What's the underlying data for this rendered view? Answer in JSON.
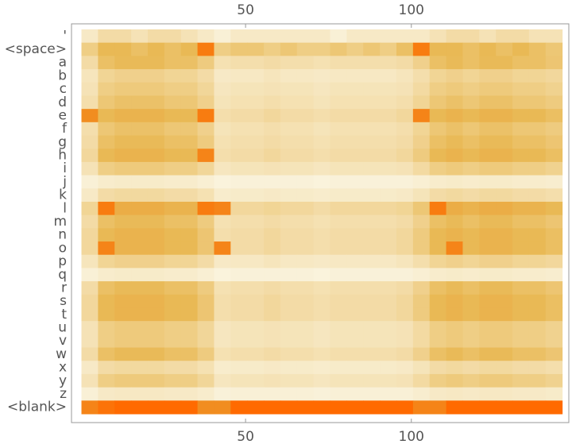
{
  "chart_data": {
    "type": "heatmap",
    "rows": [
      "'",
      "<space>",
      "a",
      "b",
      "c",
      "d",
      "e",
      "f",
      "g",
      "h",
      "i",
      "j",
      "k",
      "l",
      "m",
      "n",
      "o",
      "p",
      "q",
      "r",
      "s",
      "t",
      "u",
      "v",
      "w",
      "x",
      "y",
      "z",
      "<blank>"
    ],
    "x": [
      3,
      8,
      13,
      18,
      23,
      28,
      33,
      38,
      43,
      48,
      53,
      58,
      63,
      68,
      73,
      78,
      83,
      88,
      93,
      98,
      103,
      108,
      113,
      118,
      123,
      128,
      133,
      138,
      143
    ],
    "xlim": [
      -2.5,
      147.5
    ],
    "xticks": [
      50,
      100
    ],
    "values": [
      [
        0.1,
        0.2,
        0.2,
        0.15,
        0.2,
        0.2,
        0.15,
        0.1,
        0.05,
        0.1,
        0.1,
        0.1,
        0.1,
        0.1,
        0.1,
        0.05,
        0.1,
        0.1,
        0.1,
        0.1,
        0.1,
        0.15,
        0.2,
        0.2,
        0.15,
        0.2,
        0.2,
        0.15,
        0.15
      ],
      [
        0.3,
        0.45,
        0.45,
        0.4,
        0.45,
        0.4,
        0.45,
        0.9,
        0.3,
        0.35,
        0.35,
        0.3,
        0.35,
        0.3,
        0.3,
        0.35,
        0.3,
        0.35,
        0.3,
        0.4,
        0.9,
        0.45,
        0.45,
        0.4,
        0.45,
        0.4,
        0.45,
        0.4,
        0.35
      ],
      [
        0.2,
        0.4,
        0.44,
        0.44,
        0.44,
        0.4,
        0.4,
        0.32,
        0.16,
        0.18,
        0.18,
        0.2,
        0.18,
        0.18,
        0.16,
        0.18,
        0.18,
        0.18,
        0.18,
        0.2,
        0.28,
        0.4,
        0.44,
        0.4,
        0.44,
        0.44,
        0.4,
        0.4,
        0.36
      ],
      [
        0.13,
        0.25,
        0.28,
        0.28,
        0.28,
        0.25,
        0.25,
        0.2,
        0.1,
        0.11,
        0.11,
        0.13,
        0.11,
        0.11,
        0.1,
        0.11,
        0.11,
        0.11,
        0.11,
        0.13,
        0.18,
        0.25,
        0.28,
        0.25,
        0.28,
        0.28,
        0.25,
        0.25,
        0.23
      ],
      [
        0.15,
        0.3,
        0.33,
        0.33,
        0.33,
        0.3,
        0.3,
        0.24,
        0.12,
        0.14,
        0.14,
        0.15,
        0.14,
        0.14,
        0.12,
        0.14,
        0.14,
        0.14,
        0.14,
        0.15,
        0.21,
        0.3,
        0.33,
        0.3,
        0.33,
        0.33,
        0.3,
        0.3,
        0.27
      ],
      [
        0.18,
        0.35,
        0.39,
        0.39,
        0.39,
        0.35,
        0.35,
        0.28,
        0.14,
        0.16,
        0.16,
        0.18,
        0.16,
        0.16,
        0.14,
        0.16,
        0.16,
        0.16,
        0.16,
        0.18,
        0.25,
        0.35,
        0.39,
        0.35,
        0.39,
        0.39,
        0.35,
        0.35,
        0.32
      ],
      [
        0.8,
        0.45,
        0.5,
        0.5,
        0.5,
        0.45,
        0.45,
        0.9,
        0.18,
        0.2,
        0.2,
        0.23,
        0.2,
        0.2,
        0.18,
        0.2,
        0.2,
        0.2,
        0.2,
        0.23,
        0.85,
        0.45,
        0.5,
        0.45,
        0.5,
        0.5,
        0.45,
        0.45,
        0.41
      ],
      [
        0.18,
        0.35,
        0.39,
        0.39,
        0.39,
        0.35,
        0.35,
        0.28,
        0.14,
        0.16,
        0.16,
        0.18,
        0.16,
        0.16,
        0.14,
        0.16,
        0.16,
        0.16,
        0.16,
        0.18,
        0.25,
        0.35,
        0.39,
        0.35,
        0.39,
        0.39,
        0.35,
        0.35,
        0.32
      ],
      [
        0.2,
        0.4,
        0.44,
        0.44,
        0.44,
        0.4,
        0.4,
        0.32,
        0.16,
        0.18,
        0.18,
        0.2,
        0.18,
        0.18,
        0.16,
        0.18,
        0.18,
        0.18,
        0.18,
        0.2,
        0.28,
        0.4,
        0.44,
        0.4,
        0.44,
        0.44,
        0.4,
        0.4,
        0.36
      ],
      [
        0.23,
        0.45,
        0.5,
        0.5,
        0.5,
        0.45,
        0.45,
        0.85,
        0.18,
        0.2,
        0.2,
        0.23,
        0.2,
        0.2,
        0.18,
        0.2,
        0.2,
        0.2,
        0.2,
        0.23,
        0.32,
        0.45,
        0.5,
        0.45,
        0.5,
        0.5,
        0.45,
        0.45,
        0.41
      ],
      [
        0.15,
        0.3,
        0.33,
        0.33,
        0.33,
        0.3,
        0.3,
        0.24,
        0.12,
        0.14,
        0.14,
        0.15,
        0.14,
        0.14,
        0.12,
        0.14,
        0.14,
        0.14,
        0.14,
        0.15,
        0.21,
        0.3,
        0.33,
        0.3,
        0.33,
        0.33,
        0.3,
        0.3,
        0.27
      ],
      [
        0.05,
        0.08,
        0.09,
        0.09,
        0.09,
        0.08,
        0.08,
        0.06,
        0.03,
        0.04,
        0.04,
        0.04,
        0.04,
        0.04,
        0.03,
        0.04,
        0.04,
        0.04,
        0.04,
        0.04,
        0.06,
        0.08,
        0.09,
        0.08,
        0.09,
        0.09,
        0.08,
        0.08,
        0.07
      ],
      [
        0.1,
        0.2,
        0.22,
        0.22,
        0.22,
        0.2,
        0.2,
        0.16,
        0.08,
        0.09,
        0.09,
        0.1,
        0.09,
        0.09,
        0.08,
        0.09,
        0.09,
        0.09,
        0.09,
        0.1,
        0.14,
        0.2,
        0.22,
        0.2,
        0.22,
        0.22,
        0.2,
        0.2,
        0.18
      ],
      [
        0.25,
        0.9,
        0.55,
        0.55,
        0.55,
        0.5,
        0.5,
        0.9,
        0.85,
        0.23,
        0.23,
        0.25,
        0.23,
        0.23,
        0.2,
        0.23,
        0.23,
        0.23,
        0.23,
        0.25,
        0.35,
        0.9,
        0.55,
        0.5,
        0.55,
        0.55,
        0.5,
        0.5,
        0.45
      ],
      [
        0.2,
        0.4,
        0.44,
        0.44,
        0.44,
        0.4,
        0.4,
        0.32,
        0.16,
        0.18,
        0.18,
        0.2,
        0.18,
        0.18,
        0.16,
        0.18,
        0.18,
        0.18,
        0.18,
        0.2,
        0.28,
        0.4,
        0.44,
        0.4,
        0.44,
        0.44,
        0.4,
        0.4,
        0.36
      ],
      [
        0.23,
        0.45,
        0.5,
        0.5,
        0.5,
        0.45,
        0.45,
        0.36,
        0.18,
        0.2,
        0.2,
        0.23,
        0.2,
        0.2,
        0.18,
        0.2,
        0.2,
        0.2,
        0.2,
        0.23,
        0.32,
        0.45,
        0.5,
        0.45,
        0.5,
        0.5,
        0.45,
        0.45,
        0.41
      ],
      [
        0.23,
        0.85,
        0.5,
        0.5,
        0.5,
        0.45,
        0.45,
        0.36,
        0.85,
        0.2,
        0.2,
        0.23,
        0.2,
        0.2,
        0.18,
        0.2,
        0.2,
        0.2,
        0.2,
        0.23,
        0.32,
        0.45,
        0.85,
        0.45,
        0.5,
        0.5,
        0.45,
        0.45,
        0.41
      ],
      [
        0.13,
        0.25,
        0.28,
        0.28,
        0.28,
        0.25,
        0.25,
        0.2,
        0.1,
        0.11,
        0.11,
        0.13,
        0.11,
        0.11,
        0.1,
        0.11,
        0.11,
        0.11,
        0.11,
        0.13,
        0.18,
        0.25,
        0.28,
        0.25,
        0.28,
        0.28,
        0.25,
        0.25,
        0.23
      ],
      [
        0.05,
        0.08,
        0.09,
        0.09,
        0.09,
        0.08,
        0.08,
        0.06,
        0.03,
        0.04,
        0.04,
        0.04,
        0.04,
        0.04,
        0.03,
        0.04,
        0.04,
        0.04,
        0.04,
        0.04,
        0.06,
        0.08,
        0.09,
        0.08,
        0.09,
        0.09,
        0.08,
        0.08,
        0.07
      ],
      [
        0.2,
        0.4,
        0.44,
        0.44,
        0.44,
        0.4,
        0.4,
        0.32,
        0.16,
        0.18,
        0.18,
        0.2,
        0.18,
        0.18,
        0.16,
        0.18,
        0.18,
        0.18,
        0.18,
        0.2,
        0.28,
        0.4,
        0.44,
        0.4,
        0.44,
        0.44,
        0.4,
        0.4,
        0.36
      ],
      [
        0.23,
        0.45,
        0.5,
        0.5,
        0.5,
        0.45,
        0.45,
        0.36,
        0.18,
        0.2,
        0.2,
        0.23,
        0.2,
        0.2,
        0.18,
        0.2,
        0.2,
        0.2,
        0.2,
        0.23,
        0.32,
        0.45,
        0.5,
        0.45,
        0.5,
        0.5,
        0.45,
        0.45,
        0.41
      ],
      [
        0.23,
        0.45,
        0.5,
        0.5,
        0.5,
        0.45,
        0.45,
        0.36,
        0.18,
        0.2,
        0.2,
        0.23,
        0.2,
        0.2,
        0.18,
        0.2,
        0.2,
        0.2,
        0.2,
        0.23,
        0.32,
        0.45,
        0.5,
        0.45,
        0.5,
        0.5,
        0.45,
        0.45,
        0.41
      ],
      [
        0.15,
        0.3,
        0.33,
        0.33,
        0.33,
        0.3,
        0.3,
        0.24,
        0.12,
        0.14,
        0.14,
        0.15,
        0.14,
        0.14,
        0.12,
        0.14,
        0.14,
        0.14,
        0.14,
        0.15,
        0.21,
        0.3,
        0.33,
        0.3,
        0.33,
        0.33,
        0.3,
        0.3,
        0.27
      ],
      [
        0.15,
        0.3,
        0.33,
        0.33,
        0.33,
        0.3,
        0.3,
        0.24,
        0.12,
        0.14,
        0.14,
        0.15,
        0.14,
        0.14,
        0.12,
        0.14,
        0.14,
        0.14,
        0.14,
        0.15,
        0.21,
        0.3,
        0.33,
        0.3,
        0.33,
        0.33,
        0.3,
        0.3,
        0.27
      ],
      [
        0.2,
        0.4,
        0.44,
        0.44,
        0.44,
        0.4,
        0.4,
        0.32,
        0.16,
        0.18,
        0.18,
        0.2,
        0.18,
        0.18,
        0.16,
        0.18,
        0.18,
        0.18,
        0.18,
        0.2,
        0.28,
        0.4,
        0.44,
        0.4,
        0.44,
        0.44,
        0.4,
        0.4,
        0.36
      ],
      [
        0.1,
        0.2,
        0.22,
        0.22,
        0.22,
        0.2,
        0.2,
        0.16,
        0.08,
        0.09,
        0.09,
        0.1,
        0.09,
        0.09,
        0.08,
        0.09,
        0.09,
        0.09,
        0.09,
        0.1,
        0.14,
        0.2,
        0.22,
        0.2,
        0.22,
        0.22,
        0.2,
        0.2,
        0.18
      ],
      [
        0.15,
        0.3,
        0.33,
        0.33,
        0.33,
        0.3,
        0.3,
        0.24,
        0.12,
        0.14,
        0.14,
        0.15,
        0.14,
        0.14,
        0.12,
        0.14,
        0.14,
        0.14,
        0.14,
        0.15,
        0.21,
        0.3,
        0.33,
        0.3,
        0.33,
        0.33,
        0.3,
        0.3,
        0.27
      ],
      [
        0.05,
        0.1,
        0.11,
        0.11,
        0.11,
        0.1,
        0.1,
        0.08,
        0.04,
        0.05,
        0.05,
        0.05,
        0.05,
        0.05,
        0.04,
        0.05,
        0.05,
        0.05,
        0.05,
        0.05,
        0.07,
        0.1,
        0.11,
        0.1,
        0.11,
        0.11,
        0.1,
        0.1,
        0.09
      ],
      [
        0.85,
        0.95,
        1,
        1,
        1,
        1,
        1,
        0.8,
        0.8,
        1,
        1,
        1,
        1,
        1,
        1,
        1,
        1,
        1,
        1,
        1,
        0.85,
        0.85,
        1,
        1,
        1,
        1,
        1,
        1,
        1
      ]
    ]
  }
}
